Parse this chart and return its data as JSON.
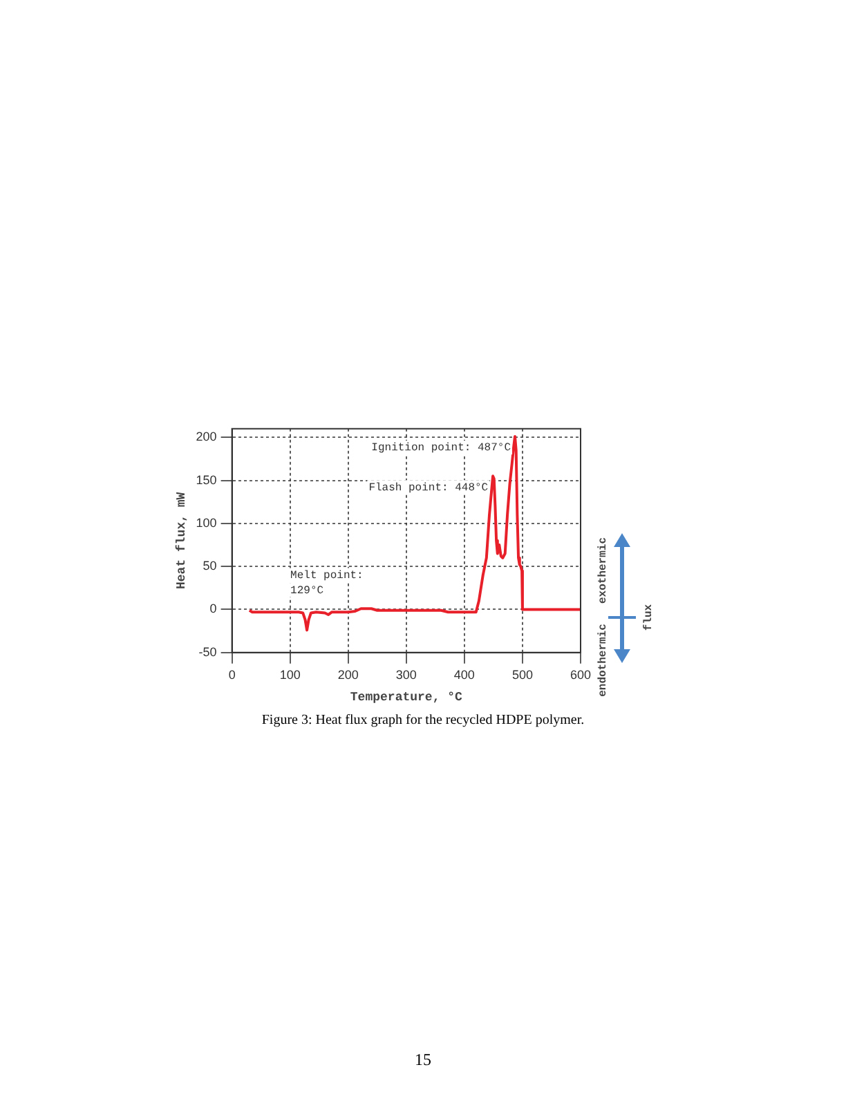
{
  "chart_data": {
    "type": "line",
    "xlabel": "Temperature, °C",
    "ylabel": "Heat flux, mW",
    "x": [
      30,
      35,
      60,
      90,
      115,
      122,
      126,
      129,
      132,
      136,
      145,
      160,
      166,
      172,
      200,
      212,
      222,
      240,
      250,
      300,
      360,
      372,
      420,
      425,
      432,
      438,
      443,
      447,
      449,
      451,
      453,
      455,
      457,
      460,
      463,
      466,
      470,
      474,
      478,
      482,
      485,
      487,
      489,
      491,
      493,
      495,
      497,
      499,
      500,
      503,
      600
    ],
    "series": [
      {
        "color": "#e8202a",
        "values": [
          -1,
          -3,
          -3,
          -3,
          -3,
          -4,
          -12,
          -24,
          -12,
          -4,
          -3,
          -4,
          -6,
          -3,
          -3,
          -2,
          1,
          1,
          -1,
          -1,
          -1,
          -3,
          -3,
          10,
          40,
          60,
          110,
          140,
          155,
          152,
          120,
          80,
          65,
          75,
          62,
          60,
          65,
          110,
          145,
          170,
          190,
          201,
          185,
          110,
          60,
          52,
          50,
          45,
          0,
          0,
          0
        ]
      }
    ],
    "xlim": [
      0,
      600
    ],
    "xticks": [
      0,
      100,
      200,
      300,
      400,
      500,
      600
    ],
    "ylim": [
      -50,
      210
    ],
    "yticks": [
      -50,
      0,
      50,
      100,
      150,
      200
    ],
    "grid": true,
    "legend": false,
    "marker": "none",
    "line_style": "solid",
    "annotations": [
      {
        "text": "Ignition point: 487°C",
        "x": 487,
        "y": 201
      },
      {
        "text": "Flash point: 448°C",
        "x": 448,
        "y": 155
      },
      {
        "text": "Melt point:\n129°C",
        "x": 129,
        "y": -24
      },
      "exothermic",
      "endothermic",
      "flux",
      "Figure 3: Heat flux graph for the recycled HDPE polymer.",
      "15"
    ]
  }
}
